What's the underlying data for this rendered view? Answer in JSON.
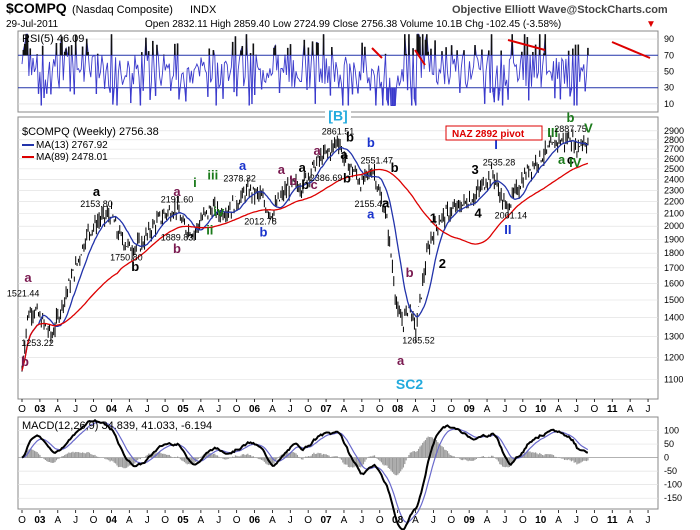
{
  "header": {
    "symbol": "$COMPQ",
    "name": "(Nasdaq Composite)",
    "exchange": "INDX",
    "source": "Objective Elliott Wave@StockCharts.com",
    "date": "29-Jul-2011",
    "ohlc_line": "Open 2832.11  High 2859.40  Low 2724.99  Close 2756.38  Volume 10.1B  Chg -102.45 (-3.58%)",
    "down_arrow": "▼"
  },
  "rsi": {
    "label": "RSI(5) 46.09",
    "ticks": [
      {
        "value": 90,
        "text": "90"
      },
      {
        "value": 70,
        "text": "70"
      },
      {
        "value": 50,
        "text": "50"
      },
      {
        "value": 30,
        "text": "30"
      },
      {
        "value": 10,
        "text": "10"
      }
    ],
    "upper": 70,
    "lower": 30
  },
  "price": {
    "legend": "$COMPQ (Weekly) 2756.38",
    "ma13": "MA(13) 2767.92",
    "ma89": "MA(89) 2478.01",
    "pivot": "NAZ 2892 pivot",
    "ticks": [
      "2900",
      "2800",
      "2700",
      "2600",
      "2500",
      "2400",
      "2300",
      "2200",
      "2100",
      "2000",
      "1900",
      "1800",
      "1700",
      "1600",
      "1500",
      "1400",
      "1300",
      "1200",
      "1100"
    ],
    "tick_values": [
      2900,
      2800,
      2700,
      2600,
      2500,
      2400,
      2300,
      2200,
      2100,
      2000,
      1900,
      1800,
      1700,
      1600,
      1500,
      1400,
      1300,
      1200,
      1100
    ],
    "colors": {
      "price": "#000000",
      "ma13": "#2233aa",
      "ma89": "#dd0000",
      "wave_blue": "#1a33cc",
      "wave_green": "#1a7a1a",
      "wave_purple": "#7a1a50",
      "wave_cyan": "#22aadd"
    }
  },
  "macd": {
    "label": "MACD(12,26,9) 34.839, 41.033, -6.194",
    "ticks": [
      {
        "value": 100,
        "text": "100"
      },
      {
        "value": 50,
        "text": "50"
      },
      {
        "value": 0,
        "text": "0"
      },
      {
        "value": -50,
        "text": "-50"
      },
      {
        "value": -100,
        "text": "-100"
      },
      {
        "value": -150,
        "text": "-150"
      }
    ]
  },
  "x_axis": {
    "labels": [
      "O",
      "03",
      "A",
      "J",
      "O",
      "04",
      "A",
      "J",
      "O",
      "05",
      "A",
      "J",
      "O",
      "06",
      "A",
      "J",
      "O",
      "07",
      "A",
      "J",
      "O",
      "08",
      "A",
      "J",
      "O",
      "09",
      "A",
      "J",
      "O",
      "10",
      "A",
      "J",
      "O",
      "11",
      "A",
      "J"
    ],
    "bold": [
      "03",
      "04",
      "05",
      "06",
      "07",
      "08",
      "09",
      "10",
      "11"
    ]
  },
  "annotations": [
    {
      "text": "1521.44",
      "t": 0.2,
      "v": 1521,
      "kind": "price"
    },
    {
      "text": "b",
      "t": 0.5,
      "v": 1160,
      "kind": "purple"
    },
    {
      "text": "1253.22",
      "t": 2.6,
      "v": 1253,
      "kind": "price"
    },
    {
      "text": "a",
      "t": 1.0,
      "v": 1610,
      "kind": "purple"
    },
    {
      "text": "a",
      "t": 12.5,
      "v": 2250,
      "kind": "black"
    },
    {
      "text": "2153.80",
      "t": 12.5,
      "v": 2153,
      "kind": "price"
    },
    {
      "text": "1750.80",
      "t": 17.5,
      "v": 1750,
      "kind": "price"
    },
    {
      "text": "b",
      "t": 19.0,
      "v": 1680,
      "kind": "black"
    },
    {
      "text": "a",
      "t": 26.0,
      "v": 2250,
      "kind": "purple"
    },
    {
      "text": "2191.60",
      "t": 26.0,
      "v": 2191,
      "kind": "price"
    },
    {
      "text": "1889.83",
      "t": 26.0,
      "v": 1890,
      "kind": "price"
    },
    {
      "text": "b",
      "t": 26.0,
      "v": 1800,
      "kind": "purple"
    },
    {
      "text": "i",
      "t": 29.0,
      "v": 2330,
      "kind": "green"
    },
    {
      "text": "ii",
      "t": 31.5,
      "v": 1935,
      "kind": "green"
    },
    {
      "text": "iii",
      "t": 32.0,
      "v": 2400,
      "kind": "green"
    },
    {
      "text": "iv",
      "t": 33.0,
      "v": 2080,
      "kind": "green"
    },
    {
      "text": "a",
      "t": 37.0,
      "v": 2490,
      "kind": "blue"
    },
    {
      "text": "2378.32",
      "t": 36.5,
      "v": 2378,
      "kind": "price"
    },
    {
      "text": "2012.78",
      "t": 40.0,
      "v": 2013,
      "kind": "price"
    },
    {
      "text": "b",
      "t": 40.5,
      "v": 1920,
      "kind": "blue"
    },
    {
      "text": "a",
      "t": 43.5,
      "v": 2450,
      "kind": "purple"
    },
    {
      "text": "b",
      "t": 45.5,
      "v": 2350,
      "kind": "purple"
    },
    {
      "text": "a",
      "t": 47.0,
      "v": 2470,
      "kind": "black"
    },
    {
      "text": "b",
      "t": 47.5,
      "v": 2310,
      "kind": "black"
    },
    {
      "text": "c",
      "t": 49.0,
      "v": 2310,
      "kind": "purple"
    },
    {
      "text": "2386.69",
      "t": 51.0,
      "v": 2386,
      "kind": "price"
    },
    {
      "text": "a",
      "t": 49.5,
      "v": 2640,
      "kind": "purple"
    },
    {
      "text": "[B]",
      "t": 53.0,
      "v": 3020,
      "kind": "cyan"
    },
    {
      "text": "2861.51",
      "t": 53.0,
      "v": 2861,
      "kind": "price"
    },
    {
      "text": "b",
      "t": 55.0,
      "v": 2780,
      "kind": "black"
    },
    {
      "text": "a",
      "t": 54.0,
      "v": 2600,
      "kind": "black"
    },
    {
      "text": "b",
      "t": 54.5,
      "v": 2370,
      "kind": "black"
    },
    {
      "text": "b",
      "t": 58.5,
      "v": 2720,
      "kind": "blue"
    },
    {
      "text": "2551.47",
      "t": 59.5,
      "v": 2551,
      "kind": "price"
    },
    {
      "text": "2155.42",
      "t": 58.5,
      "v": 2155,
      "kind": "price"
    },
    {
      "text": "a",
      "t": 58.5,
      "v": 2060,
      "kind": "blue"
    },
    {
      "text": "b",
      "t": 62.5,
      "v": 2470,
      "kind": "black"
    },
    {
      "text": "a",
      "t": 61.0,
      "v": 2150,
      "kind": "black"
    },
    {
      "text": "b",
      "t": 65.0,
      "v": 1640,
      "kind": "purple"
    },
    {
      "text": "a",
      "t": 63.5,
      "v": 1165,
      "kind": "purple"
    },
    {
      "text": "1265.52",
      "t": 66.5,
      "v": 1265,
      "kind": "price"
    },
    {
      "text": "SC2",
      "t": 65.0,
      "v": 1060,
      "kind": "cyan"
    },
    {
      "text": "1",
      "t": 69.0,
      "v": 2030,
      "kind": "black"
    },
    {
      "text": "2",
      "t": 70.5,
      "v": 1700,
      "kind": "black"
    },
    {
      "text": "3",
      "t": 76.0,
      "v": 2450,
      "kind": "black"
    },
    {
      "text": "4",
      "t": 76.5,
      "v": 2070,
      "kind": "black"
    },
    {
      "text": "I",
      "t": 79.5,
      "v": 2700,
      "kind": "blue"
    },
    {
      "text": "2535.28",
      "t": 80.0,
      "v": 2535,
      "kind": "price"
    },
    {
      "text": "2061.14",
      "t": 82.0,
      "v": 2061,
      "kind": "price"
    },
    {
      "text": "II",
      "t": 81.5,
      "v": 1940,
      "kind": "blue"
    },
    {
      "text": "III",
      "t": 89.0,
      "v": 2830,
      "kind": "green"
    },
    {
      "text": "b",
      "t": 92.0,
      "v": 3000,
      "kind": "green"
    },
    {
      "text": "2887.75",
      "t": 92.0,
      "v": 2887,
      "kind": "price"
    },
    {
      "text": "V",
      "t": 95.0,
      "v": 2880,
      "kind": "green"
    },
    {
      "text": "a",
      "t": 90.5,
      "v": 2550,
      "kind": "green"
    },
    {
      "text": "c",
      "t": 92.0,
      "v": 2550,
      "kind": "black"
    },
    {
      "text": "IV",
      "t": 92.8,
      "v": 2520,
      "kind": "green"
    }
  ]
}
